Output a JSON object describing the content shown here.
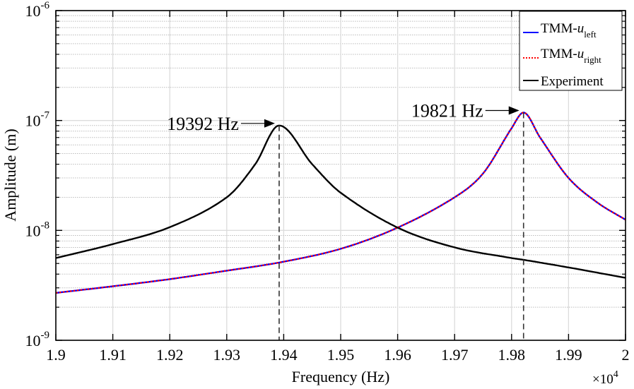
{
  "chart_data": {
    "type": "line",
    "title": "",
    "xlabel": "Frequency (Hz)",
    "ylabel": "Amplitude (m)",
    "x_multiplier_label": "×10",
    "x_multiplier_exp": "4",
    "xlim": [
      19000,
      20000
    ],
    "ylim": [
      1e-09,
      1e-06
    ],
    "yscale": "log",
    "grid": true,
    "legend_position": "top-right",
    "x_ticks": [
      {
        "value": 19000,
        "label": "1.9"
      },
      {
        "value": 19100,
        "label": "1.91"
      },
      {
        "value": 19200,
        "label": "1.92"
      },
      {
        "value": 19300,
        "label": "1.93"
      },
      {
        "value": 19400,
        "label": "1.94"
      },
      {
        "value": 19500,
        "label": "1.95"
      },
      {
        "value": 19600,
        "label": "1.96"
      },
      {
        "value": 19700,
        "label": "1.97"
      },
      {
        "value": 19800,
        "label": "1.98"
      },
      {
        "value": 19900,
        "label": "1.99"
      },
      {
        "value": 20000,
        "label": "2"
      }
    ],
    "y_ticks": [
      {
        "value": 1e-09,
        "base": "10",
        "exp": "-9"
      },
      {
        "value": 1e-08,
        "base": "10",
        "exp": "-8"
      },
      {
        "value": 1e-07,
        "base": "10",
        "exp": "-7"
      },
      {
        "value": 1e-06,
        "base": "10",
        "exp": "-6"
      }
    ],
    "series": [
      {
        "name": "TMM-u_left",
        "label_main": "TMM-",
        "label_italic": "u",
        "label_sub": "left",
        "color": "#0000ff",
        "style": "solid",
        "model": "resonance",
        "peak_freq": 19821,
        "x": [
          19000,
          19100,
          19200,
          19300,
          19392,
          19500,
          19600,
          19700,
          19750,
          19800,
          19821,
          19850,
          19900,
          19950,
          20000
        ],
        "y": [
          2.7e-09,
          3.1e-09,
          3.6e-09,
          4.3e-09,
          5.1e-09,
          6.8e-09,
          1.06e-08,
          2e-08,
          3.3e-08,
          8.5e-08,
          1.18e-07,
          7e-08,
          3e-08,
          1.8e-08,
          1.25e-08
        ]
      },
      {
        "name": "TMM-u_right",
        "label_main": "TMM-",
        "label_italic": "u",
        "label_sub": "right",
        "color": "#ff0000",
        "style": "dotted",
        "model": "resonance",
        "peak_freq": 19821,
        "x": [
          19000,
          19100,
          19200,
          19300,
          19392,
          19500,
          19600,
          19700,
          19750,
          19800,
          19821,
          19850,
          19900,
          19950,
          20000
        ],
        "y": [
          2.7e-09,
          3.1e-09,
          3.6e-09,
          4.3e-09,
          5.1e-09,
          6.8e-09,
          1.06e-08,
          2e-08,
          3.3e-08,
          8.5e-08,
          1.18e-07,
          7e-08,
          3e-08,
          1.8e-08,
          1.25e-08
        ]
      },
      {
        "name": "Experiment",
        "label_main": "Experiment",
        "label_italic": "",
        "label_sub": "",
        "color": "#000000",
        "style": "solid",
        "model": "resonance",
        "peak_freq": 19392,
        "x": [
          19000,
          19100,
          19200,
          19300,
          19350,
          19392,
          19450,
          19500,
          19600,
          19700,
          19800,
          19821,
          19900,
          20000
        ],
        "y": [
          5.6e-09,
          7.5e-09,
          1.07e-08,
          2e-08,
          4e-08,
          9e-08,
          4e-08,
          2.2e-08,
          1.06e-08,
          7e-09,
          5.6e-09,
          5.4e-09,
          4.6e-09,
          3.7e-09
        ]
      }
    ],
    "annotations": [
      {
        "text": "19392 Hz",
        "x": 19392,
        "y": 9e-08,
        "type": "arrow-to-peak",
        "vline": true
      },
      {
        "text": "19821 Hz",
        "x": 19821,
        "y": 1.18e-07,
        "type": "arrow-to-peak",
        "vline": true
      }
    ]
  }
}
